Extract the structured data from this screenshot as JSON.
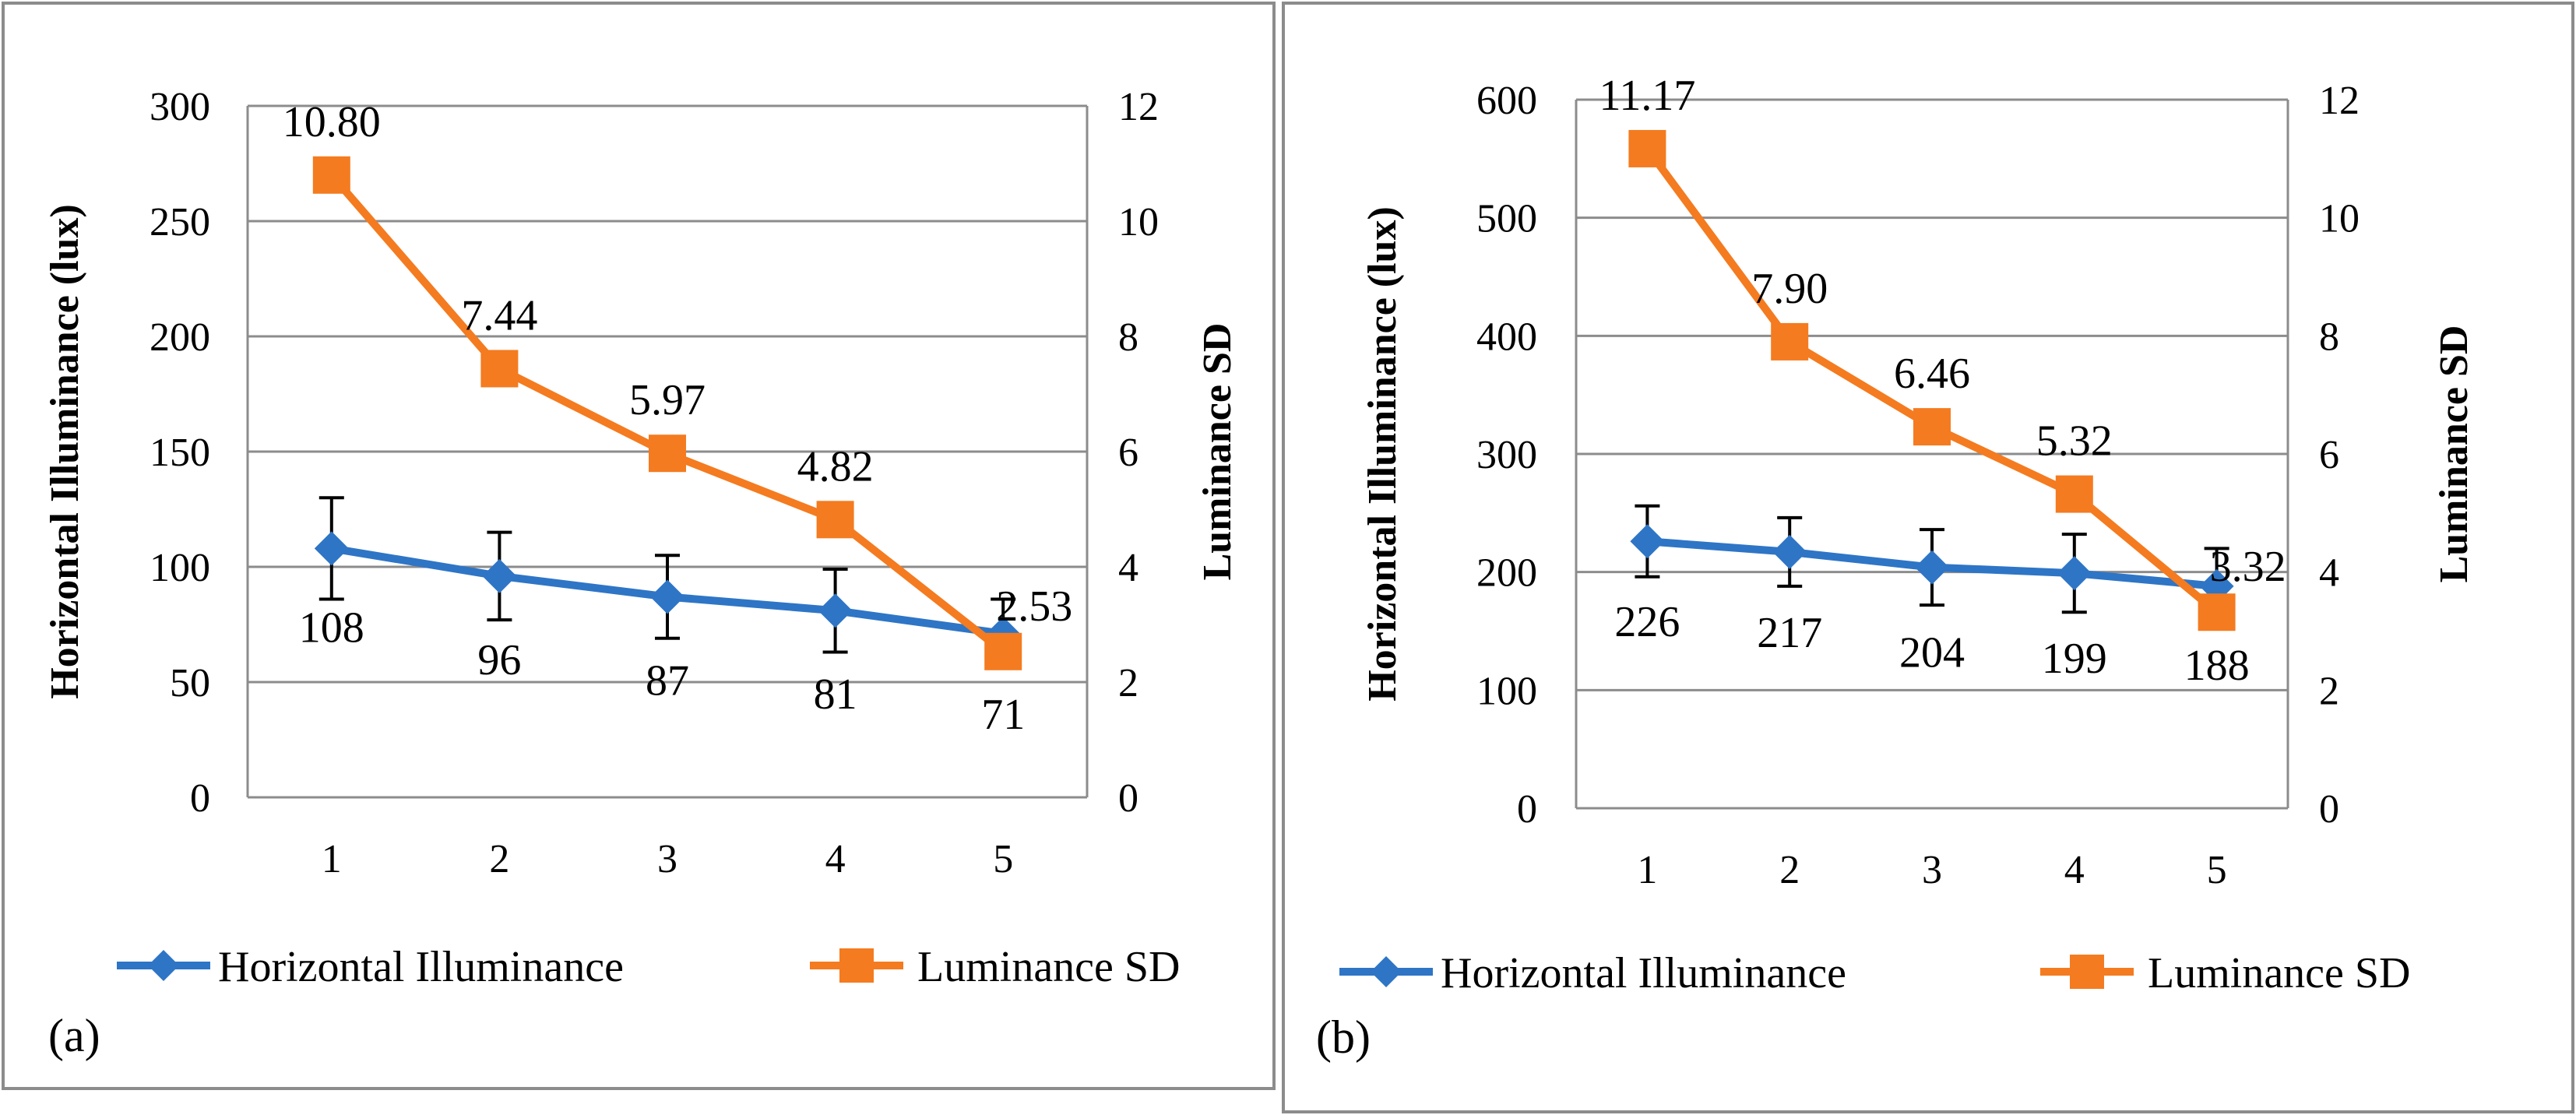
{
  "colors": {
    "illuminance": "#2e75c6",
    "luminance_sd": "#f47b20"
  },
  "chart_data": [
    {
      "type": "line",
      "panel_label": "(a)",
      "categories": [
        "1",
        "2",
        "3",
        "4",
        "5"
      ],
      "y_left": {
        "label": "Horizontal Illuminance (lux)",
        "min": 0,
        "max": 300,
        "step": 50,
        "ticks": [
          "0",
          "50",
          "100",
          "150",
          "200",
          "250",
          "300"
        ]
      },
      "y_right": {
        "label": "Luminance SD",
        "min": 0,
        "max": 12,
        "step": 2,
        "ticks": [
          "0",
          "2",
          "4",
          "6",
          "8",
          "10",
          "12"
        ]
      },
      "series": [
        {
          "name": "Horizontal Illuminance",
          "axis": "left",
          "marker": "diamond",
          "values": [
            108,
            96,
            87,
            81,
            71
          ],
          "labels": [
            "108",
            "96",
            "87",
            "81",
            "71"
          ],
          "error": [
            22,
            19,
            18,
            18,
            15
          ]
        },
        {
          "name": "Luminance SD",
          "axis": "right",
          "marker": "square",
          "values": [
            10.8,
            7.44,
            5.97,
            4.82,
            2.53
          ],
          "labels": [
            "10.80",
            "7.44",
            "5.97",
            "4.82",
            "2.53"
          ]
        }
      ],
      "legend_position": "bottom",
      "grid": true
    },
    {
      "type": "line",
      "panel_label": "(b)",
      "categories": [
        "1",
        "2",
        "3",
        "4",
        "5"
      ],
      "y_left": {
        "label": "Horizontal Illuminance (lux)",
        "min": 0,
        "max": 600,
        "step": 100,
        "ticks": [
          "0",
          "100",
          "200",
          "300",
          "400",
          "500",
          "600"
        ]
      },
      "y_right": {
        "label": "Luminance SD",
        "min": 0,
        "max": 12,
        "step": 2,
        "ticks": [
          "0",
          "2",
          "4",
          "6",
          "8",
          "10",
          "12"
        ]
      },
      "series": [
        {
          "name": "Horizontal Illuminance",
          "axis": "left",
          "marker": "diamond",
          "values": [
            226,
            217,
            204,
            199,
            188
          ],
          "labels": [
            "226",
            "217",
            "204",
            "199",
            "188"
          ],
          "error": [
            30,
            29,
            32,
            33,
            32
          ]
        },
        {
          "name": "Luminance SD",
          "axis": "right",
          "marker": "square",
          "values": [
            11.17,
            7.9,
            6.46,
            5.32,
            3.32
          ],
          "labels": [
            "11.17",
            "7.90",
            "6.46",
            "5.32",
            "3.32"
          ]
        }
      ],
      "legend_position": "bottom",
      "grid": true
    }
  ]
}
